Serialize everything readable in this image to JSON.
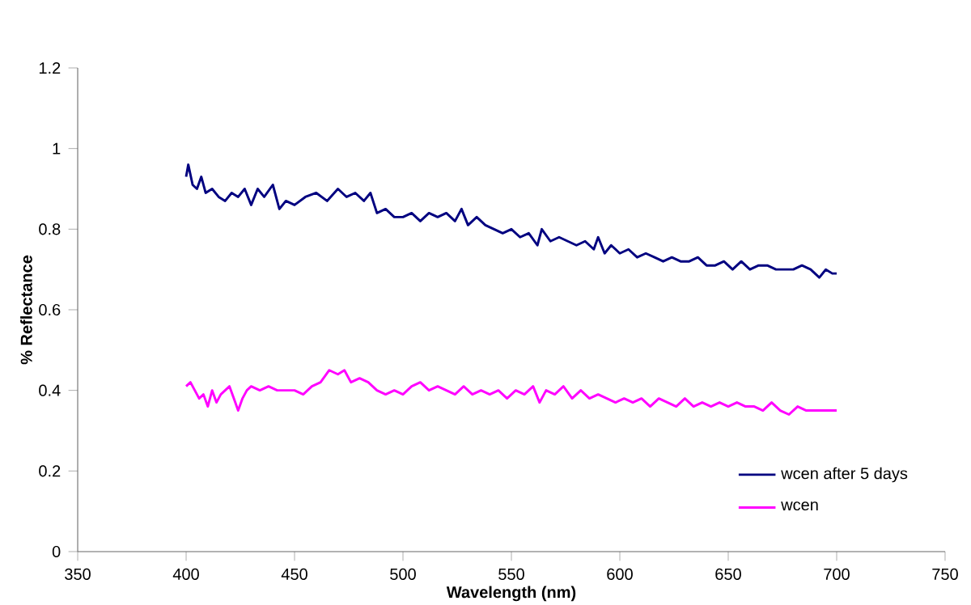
{
  "chart_data": {
    "type": "line",
    "xlabel": "Wavelength (nm)",
    "ylabel": "% Reflectance",
    "xlim": [
      350,
      750
    ],
    "xticks": [
      350,
      400,
      450,
      500,
      550,
      600,
      650,
      700,
      750
    ],
    "ylim": [
      0,
      1.2
    ],
    "yticks": [
      0,
      0.2,
      0.4,
      0.6,
      0.8,
      1,
      1.2
    ],
    "grid": false,
    "legend": "bottom right",
    "marker": "none",
    "line_style": "solid",
    "series": [
      {
        "name": "wcen after 5 days",
        "color": "#000080",
        "x": [
          400,
          401,
          403,
          405,
          407,
          409,
          412,
          415,
          418,
          421,
          424,
          427,
          430,
          433,
          436,
          440,
          443,
          446,
          450,
          455,
          460,
          465,
          470,
          474,
          478,
          482,
          485,
          488,
          492,
          496,
          500,
          504,
          508,
          512,
          516,
          520,
          524,
          527,
          530,
          534,
          538,
          542,
          546,
          550,
          554,
          558,
          562,
          564,
          568,
          572,
          576,
          580,
          584,
          588,
          590,
          593,
          596,
          600,
          604,
          608,
          612,
          616,
          620,
          624,
          628,
          632,
          636,
          640,
          644,
          648,
          652,
          656,
          660,
          664,
          668,
          672,
          676,
          680,
          684,
          688,
          692,
          695,
          698,
          700
        ],
        "values": [
          0.93,
          0.96,
          0.91,
          0.9,
          0.93,
          0.89,
          0.9,
          0.88,
          0.87,
          0.89,
          0.88,
          0.9,
          0.86,
          0.9,
          0.88,
          0.91,
          0.85,
          0.87,
          0.86,
          0.88,
          0.89,
          0.87,
          0.9,
          0.88,
          0.89,
          0.87,
          0.89,
          0.84,
          0.85,
          0.83,
          0.83,
          0.84,
          0.82,
          0.84,
          0.83,
          0.84,
          0.82,
          0.85,
          0.81,
          0.83,
          0.81,
          0.8,
          0.79,
          0.8,
          0.78,
          0.79,
          0.76,
          0.8,
          0.77,
          0.78,
          0.77,
          0.76,
          0.77,
          0.75,
          0.78,
          0.74,
          0.76,
          0.74,
          0.75,
          0.73,
          0.74,
          0.73,
          0.72,
          0.73,
          0.72,
          0.72,
          0.73,
          0.71,
          0.71,
          0.72,
          0.7,
          0.72,
          0.7,
          0.71,
          0.71,
          0.7,
          0.7,
          0.7,
          0.71,
          0.7,
          0.68,
          0.7,
          0.69,
          0.69
        ]
      },
      {
        "name": "wcen",
        "color": "#ff00ff",
        "x": [
          400,
          402,
          404,
          406,
          408,
          410,
          412,
          414,
          416,
          418,
          420,
          422,
          424,
          426,
          428,
          430,
          434,
          438,
          442,
          446,
          450,
          454,
          458,
          462,
          466,
          470,
          473,
          476,
          480,
          484,
          488,
          492,
          496,
          500,
          504,
          508,
          512,
          516,
          520,
          524,
          528,
          532,
          536,
          540,
          544,
          548,
          552,
          556,
          560,
          563,
          566,
          570,
          574,
          578,
          582,
          586,
          590,
          594,
          598,
          602,
          606,
          610,
          614,
          618,
          622,
          626,
          630,
          634,
          638,
          642,
          646,
          650,
          654,
          658,
          662,
          666,
          670,
          674,
          678,
          682,
          686,
          690,
          694,
          698,
          700
        ],
        "values": [
          0.41,
          0.42,
          0.4,
          0.38,
          0.39,
          0.36,
          0.4,
          0.37,
          0.39,
          0.4,
          0.41,
          0.38,
          0.35,
          0.38,
          0.4,
          0.41,
          0.4,
          0.41,
          0.4,
          0.4,
          0.4,
          0.39,
          0.41,
          0.42,
          0.45,
          0.44,
          0.45,
          0.42,
          0.43,
          0.42,
          0.4,
          0.39,
          0.4,
          0.39,
          0.41,
          0.42,
          0.4,
          0.41,
          0.4,
          0.39,
          0.41,
          0.39,
          0.4,
          0.39,
          0.4,
          0.38,
          0.4,
          0.39,
          0.41,
          0.37,
          0.4,
          0.39,
          0.41,
          0.38,
          0.4,
          0.38,
          0.39,
          0.38,
          0.37,
          0.38,
          0.37,
          0.38,
          0.36,
          0.38,
          0.37,
          0.36,
          0.38,
          0.36,
          0.37,
          0.36,
          0.37,
          0.36,
          0.37,
          0.36,
          0.36,
          0.35,
          0.37,
          0.35,
          0.34,
          0.36,
          0.35,
          0.35,
          0.35,
          0.35,
          0.35
        ]
      }
    ]
  }
}
